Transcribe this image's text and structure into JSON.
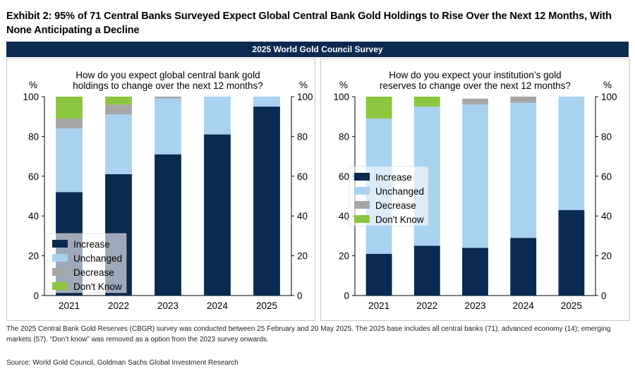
{
  "title": "Exhibit 2: 95% of 71 Central Banks Surveyed Expect Global Central Bank Gold Holdings to Rise Over the Next 12 Months, With None Anticipating a Decline",
  "banner": "2025 World Gold Council Survey",
  "colors": {
    "increase": "#0b2a4f",
    "unchanged": "#a9d2f0",
    "decrease": "#a6a6a6",
    "dont_know": "#8cc63f",
    "banner": "#0b2a4f"
  },
  "legend": [
    "Increase",
    "Unchanged",
    "Decrease",
    "Don't Know"
  ],
  "chart_data": [
    {
      "type": "bar",
      "stacked": true,
      "title": "How do you expect global central bank gold holdings to change over the next 12 months?",
      "title_lines": [
        "How do you expect global central bank gold",
        "holdings to change over the next 12 months?"
      ],
      "left_unit": "%",
      "right_unit": "%",
      "categories": [
        "2021",
        "2022",
        "2023",
        "2024",
        "2025"
      ],
      "ylim": [
        0,
        100
      ],
      "yticks": [
        0,
        20,
        40,
        60,
        80,
        100
      ],
      "legend_position": "bottom-left",
      "series": [
        {
          "name": "Increase",
          "values": [
            52,
            61,
            71,
            81,
            95
          ]
        },
        {
          "name": "Unchanged",
          "values": [
            32,
            30,
            28,
            19,
            5
          ]
        },
        {
          "name": "Decrease",
          "values": [
            5,
            5,
            1,
            0,
            0
          ]
        },
        {
          "name": "Don't Know",
          "values": [
            11,
            4,
            0,
            0,
            0
          ]
        }
      ]
    },
    {
      "type": "bar",
      "stacked": true,
      "title": "How do you expect your institution’s gold reserves to change over the next 12 months?",
      "title_lines": [
        "How do you expect your institution’s gold",
        "reserves to change over the next 12 months?"
      ],
      "left_unit": "%",
      "right_unit": "%",
      "categories": [
        "2021",
        "2022",
        "2023",
        "2024",
        "2025"
      ],
      "ylim": [
        0,
        100
      ],
      "yticks": [
        0,
        20,
        40,
        60,
        80,
        100
      ],
      "legend_position": "middle-left",
      "series": [
        {
          "name": "Increase",
          "values": [
            21,
            25,
            24,
            29,
            43
          ]
        },
        {
          "name": "Unchanged",
          "values": [
            68,
            70,
            72,
            68,
            57
          ]
        },
        {
          "name": "Decrease",
          "values": [
            0,
            0,
            3,
            3,
            0
          ]
        },
        {
          "name": "Don't Know",
          "values": [
            11,
            5,
            0,
            0,
            0
          ]
        }
      ]
    }
  ],
  "footnote": "The 2025 Central Bank Gold Reserves (CBGR) survey was conducted between 25 February and 20 May 2025. The 2025 base includes all central banks (71); advanced economy (14); emerging markets (57). “Don’t know” was removed as a option from the 2023 survey onwards.",
  "source": "Source: World Gold Council, Goldman Sachs Global Investment Research"
}
